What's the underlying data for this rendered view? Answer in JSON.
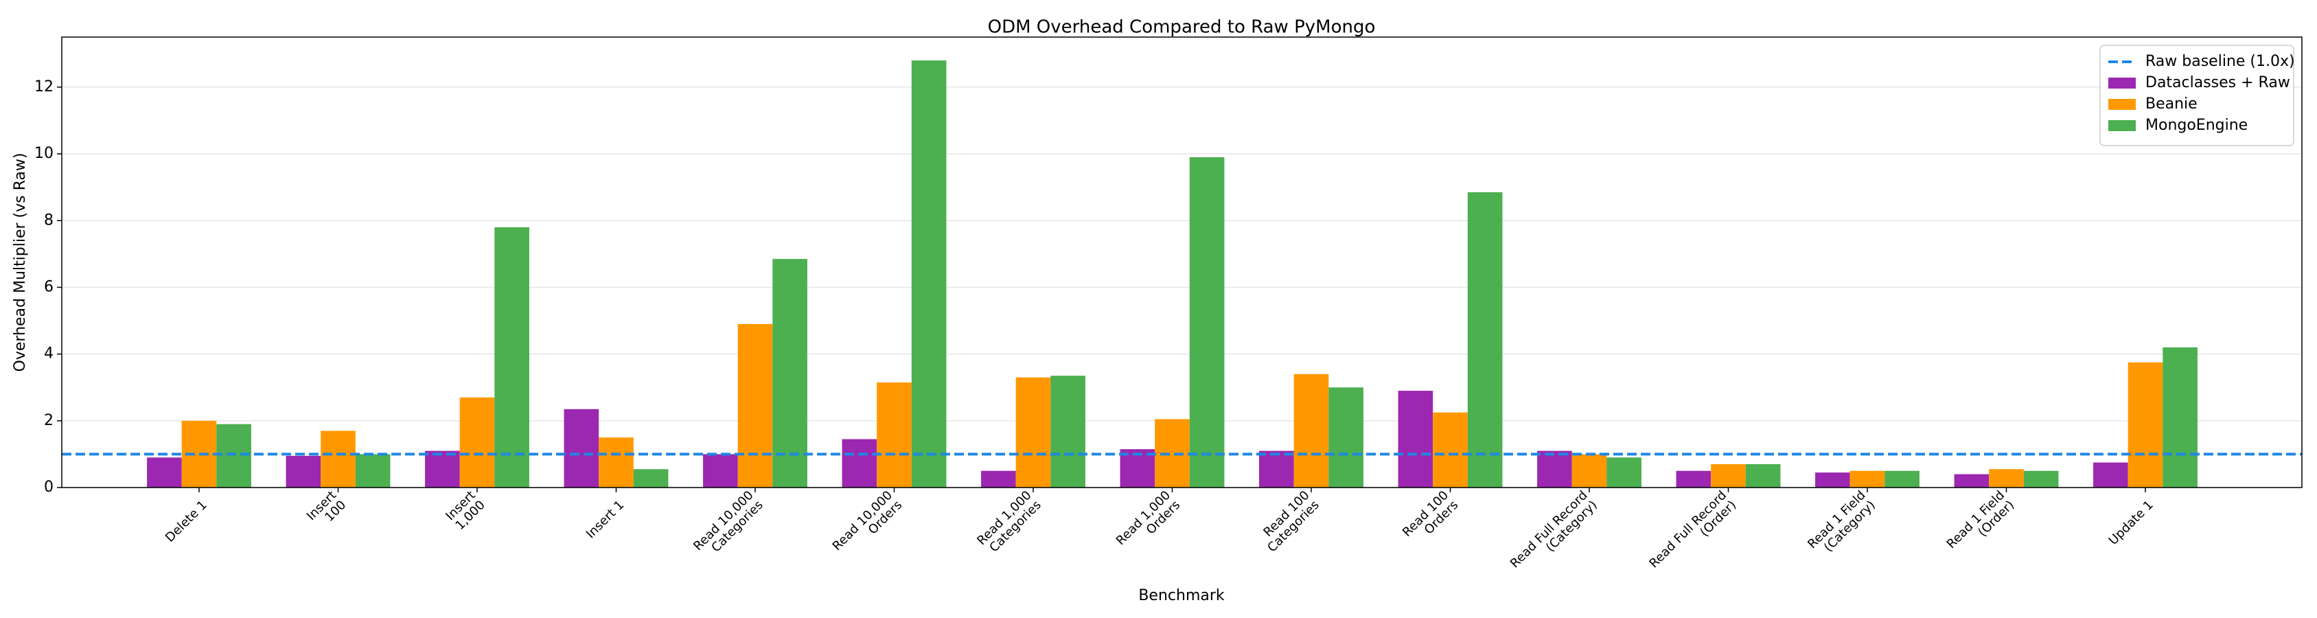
{
  "chart_data": {
    "type": "bar",
    "title": "ODM Overhead Compared to Raw PyMongo",
    "x_label": "Benchmark",
    "y_label": "Overhead Multiplier (vs Raw)",
    "categories": [
      "Delete 1",
      "Insert\n100",
      "Insert\n1,000",
      "Insert 1",
      "Read 10,000\nCategories",
      "Read 10,000\nOrders",
      "Read 1,000\nCategories",
      "Read 1,000\nOrders",
      "Read 100\nCategories",
      "Read 100\nOrders",
      "Read Full Record\n(Category)",
      "Read Full Record\n(Order)",
      "Read 1 Field\n(Category)",
      "Read 1 Field\n(Order)",
      "Update 1"
    ],
    "series": [
      {
        "name": "Dataclasses + Raw",
        "color": "#9c27b0",
        "values": [
          0.9,
          0.95,
          1.1,
          2.35,
          1.0,
          1.45,
          0.5,
          1.15,
          1.1,
          2.9,
          1.1,
          0.5,
          0.45,
          0.4,
          0.75
        ]
      },
      {
        "name": "Beanie",
        "color": "#ff9800",
        "values": [
          2.0,
          1.7,
          2.7,
          1.5,
          4.9,
          3.15,
          3.3,
          2.05,
          3.4,
          2.25,
          1.0,
          0.7,
          0.5,
          0.55,
          3.75
        ]
      },
      {
        "name": "MongoEngine",
        "color": "#4caf50",
        "values": [
          1.9,
          1.0,
          7.8,
          0.55,
          6.85,
          12.8,
          3.35,
          9.9,
          3.0,
          8.85,
          0.9,
          0.7,
          0.5,
          0.5,
          4.2
        ]
      }
    ],
    "baseline": {
      "name": "Raw baseline (1.0x)",
      "value": 1,
      "color": "#1e88e5"
    },
    "ylim": [
      0,
      13.5
    ],
    "yticks": [
      0,
      2,
      4,
      6,
      8,
      10,
      12
    ],
    "grid": true,
    "legend": "upper right"
  }
}
